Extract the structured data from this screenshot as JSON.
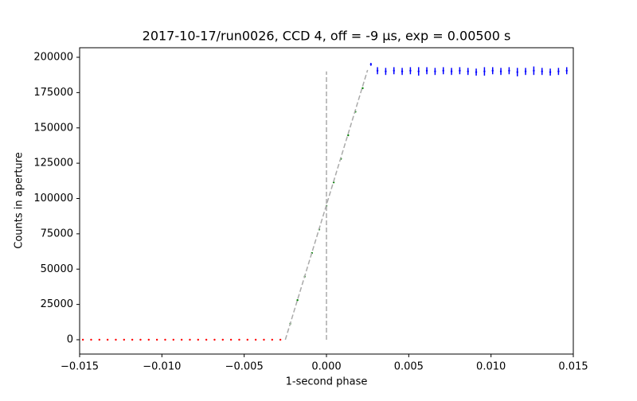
{
  "chart_data": {
    "type": "scatter",
    "title": "2017-10-17/run0026, CCD 4, off = -9 μs, exp = 0.00500 s",
    "x_label": "1-second phase",
    "y_label": "Counts in aperture",
    "xlim": [
      -0.015,
      0.015
    ],
    "ylim": [
      -10141,
      206761
    ],
    "xticks": [
      {
        "value": -0.015,
        "label": "−0.015"
      },
      {
        "value": -0.01,
        "label": "−0.010"
      },
      {
        "value": -0.005,
        "label": "−0.005"
      },
      {
        "value": 0,
        "label": "0.000"
      },
      {
        "value": 0.005,
        "label": "0.005"
      },
      {
        "value": 0.01,
        "label": "0.010"
      },
      {
        "value": 0.015,
        "label": "0.015"
      }
    ],
    "yticks": [
      0,
      25000,
      50000,
      75000,
      100000,
      125000,
      150000,
      175000,
      200000
    ],
    "series": [
      {
        "style": "points",
        "color": "#ff0000",
        "x": [
          -0.0148,
          -0.0143,
          -0.0138,
          -0.0133,
          -0.0128,
          -0.0123,
          -0.0118,
          -0.0113,
          -0.0108,
          -0.0103,
          -0.0098,
          -0.0093,
          -0.0088,
          -0.0083,
          -0.0078,
          -0.0073,
          -0.0068,
          -0.0063,
          -0.0058,
          -0.0053,
          -0.0048,
          -0.0043,
          -0.0038,
          -0.0033,
          -0.0028
        ],
        "values": [
          0,
          0,
          0,
          0,
          0,
          0,
          0,
          0,
          0,
          0,
          0,
          0,
          0,
          0,
          0,
          0,
          0,
          0,
          0,
          0,
          0,
          0,
          0,
          0,
          0
        ]
      },
      {
        "style": "points",
        "color": "#008000",
        "x": [
          -0.0022,
          -0.00176,
          -0.00132,
          -0.00088,
          -0.00044,
          0,
          0.00044,
          0.00088,
          0.00132,
          0.00176,
          0.0022
        ],
        "values": [
          11370,
          28040,
          44720,
          61390,
          78060,
          94750,
          111420,
          128100,
          144770,
          161440,
          178100
        ]
      },
      {
        "style": "dashed",
        "color": "#aaaaaa",
        "x": [
          -0.0025,
          0.0025
        ],
        "values": [
          0,
          191000
        ]
      },
      {
        "style": "dashed",
        "color": "#aaaaaa",
        "x": [
          0,
          0
        ],
        "values": [
          0,
          190000
        ]
      },
      {
        "style": "errorbar",
        "color": "#0000ff",
        "x": [
          0.0027,
          0.0031,
          0.0036,
          0.0041,
          0.0046,
          0.0051,
          0.0056,
          0.0061,
          0.0066,
          0.0071,
          0.0076,
          0.0081,
          0.0086,
          0.0091,
          0.0096,
          0.0101,
          0.0106,
          0.0111,
          0.0116,
          0.0121,
          0.0126,
          0.0131,
          0.0136,
          0.0141,
          0.0146
        ],
        "values": [
          195000,
          190500,
          190000,
          190500,
          190000,
          190500,
          190000,
          190500,
          190000,
          190500,
          190000,
          190500,
          190000,
          189500,
          190000,
          190500,
          190000,
          190500,
          189500,
          190000,
          190500,
          190000,
          189500,
          190000,
          190500
        ],
        "errors": [
          1000,
          2500,
          2500,
          2500,
          2500,
          2500,
          3000,
          2500,
          2500,
          2500,
          2500,
          2500,
          2500,
          2500,
          3000,
          2500,
          2500,
          2500,
          3000,
          2500,
          3000,
          2500,
          2500,
          2500,
          2500
        ]
      }
    ]
  }
}
